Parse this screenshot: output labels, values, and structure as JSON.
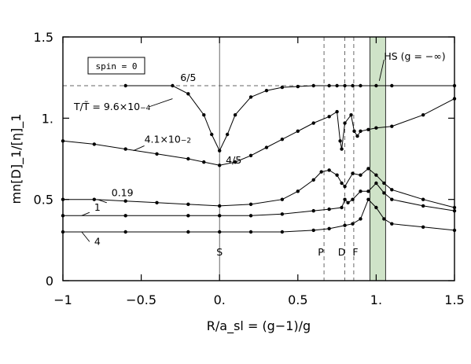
{
  "chart_data": {
    "type": "line",
    "title": "",
    "xlabel": "R/a_sl = (g−1)/g",
    "ylabel": "mn[D]_1/[η]_1",
    "xlim": [
      -1,
      1.5
    ],
    "ylim": [
      0,
      1.5
    ],
    "x_ticks": [
      {
        "value": -1,
        "label": "−1"
      },
      {
        "value": -0.5,
        "label": "−0.5"
      },
      {
        "value": 0,
        "label": "0."
      },
      {
        "value": 0.5,
        "label": "0.5"
      },
      {
        "value": 1,
        "label": "1."
      },
      {
        "value": 1.5,
        "label": "1.5"
      }
    ],
    "y_ticks": [
      {
        "value": 0,
        "label": "0"
      },
      {
        "value": 0.5,
        "label": "0.5"
      },
      {
        "value": 1,
        "label": "1."
      },
      {
        "value": 1.5,
        "label": "1.5"
      }
    ],
    "grid": false,
    "legend_box": "spin = 0",
    "reference_lines": {
      "horizontal": [
        {
          "y": 1.2,
          "label": "6/5",
          "style": "dashed"
        }
      ],
      "vertical": [
        {
          "x": 0,
          "label": "S",
          "style": "solid"
        },
        {
          "x": 0.667,
          "label": "P",
          "style": "dashed"
        },
        {
          "x": 0.8,
          "label": "D",
          "style": "dashed"
        },
        {
          "x": 0.857,
          "label": "F",
          "style": "dashed"
        }
      ]
    },
    "shaded_band": {
      "x": [
        0.96,
        1.06
      ],
      "color": "#cfe3c8",
      "label": "HS (g = −∞)"
    },
    "annotations": {
      "t_prefix": "T/T̃ = 9.6×10",
      "t_exp": "−4",
      "c2_base": "4.1×10",
      "c2_exp": "−2",
      "point_label": "4/5"
    },
    "series": [
      {
        "name": "T/T̃ = 9.6×10⁻⁴",
        "x": [
          -0.6,
          -0.3,
          -0.2,
          -0.1,
          -0.05,
          0,
          0.05,
          0.1,
          0.2,
          0.3,
          0.4,
          0.5,
          0.6,
          0.7,
          0.75,
          0.8,
          0.85,
          0.9,
          1.0,
          1.1,
          1.5
        ],
        "y": [
          1.2,
          1.2,
          1.15,
          1.02,
          0.9,
          0.8,
          0.9,
          1.02,
          1.13,
          1.17,
          1.19,
          1.195,
          1.2,
          1.2,
          1.2,
          1.2,
          1.2,
          1.2,
          1.2,
          1.2,
          1.2
        ]
      },
      {
        "name": "4.1×10⁻²",
        "x": [
          -1,
          -0.8,
          -0.6,
          -0.4,
          -0.2,
          -0.1,
          0,
          0.1,
          0.2,
          0.3,
          0.4,
          0.5,
          0.6,
          0.7,
          0.75,
          0.77,
          0.78,
          0.8,
          0.84,
          0.86,
          0.88,
          0.9,
          0.95,
          1.0,
          1.1,
          1.3,
          1.5
        ],
        "y": [
          0.86,
          0.84,
          0.81,
          0.78,
          0.75,
          0.73,
          0.71,
          0.73,
          0.77,
          0.82,
          0.87,
          0.92,
          0.97,
          1.01,
          1.04,
          0.86,
          0.81,
          0.97,
          1.02,
          0.92,
          0.89,
          0.92,
          0.93,
          0.94,
          0.95,
          1.02,
          1.12
        ]
      },
      {
        "name": "0.19",
        "x": [
          -1,
          -0.8,
          -0.6,
          -0.4,
          -0.2,
          0,
          0.2,
          0.4,
          0.5,
          0.6,
          0.65,
          0.7,
          0.75,
          0.78,
          0.8,
          0.85,
          0.9,
          0.95,
          1.0,
          1.05,
          1.1,
          1.3,
          1.5
        ],
        "y": [
          0.5,
          0.5,
          0.49,
          0.48,
          0.47,
          0.46,
          0.47,
          0.5,
          0.55,
          0.62,
          0.67,
          0.68,
          0.65,
          0.6,
          0.58,
          0.66,
          0.65,
          0.69,
          0.65,
          0.6,
          0.56,
          0.5,
          0.45
        ]
      },
      {
        "name": "1",
        "x": [
          -1,
          -0.6,
          -0.2,
          0,
          0.2,
          0.4,
          0.6,
          0.7,
          0.78,
          0.8,
          0.82,
          0.85,
          0.9,
          0.95,
          1.0,
          1.05,
          1.1,
          1.3,
          1.5
        ],
        "y": [
          0.4,
          0.4,
          0.4,
          0.4,
          0.4,
          0.41,
          0.43,
          0.44,
          0.45,
          0.5,
          0.48,
          0.5,
          0.55,
          0.55,
          0.6,
          0.54,
          0.5,
          0.46,
          0.43
        ]
      },
      {
        "name": "4",
        "x": [
          -1,
          -0.6,
          -0.2,
          0,
          0.2,
          0.4,
          0.6,
          0.7,
          0.8,
          0.85,
          0.9,
          0.95,
          1.0,
          1.05,
          1.1,
          1.3,
          1.5
        ],
        "y": [
          0.3,
          0.3,
          0.3,
          0.3,
          0.3,
          0.3,
          0.31,
          0.32,
          0.34,
          0.35,
          0.38,
          0.5,
          0.45,
          0.38,
          0.35,
          0.33,
          0.31
        ]
      }
    ]
  }
}
